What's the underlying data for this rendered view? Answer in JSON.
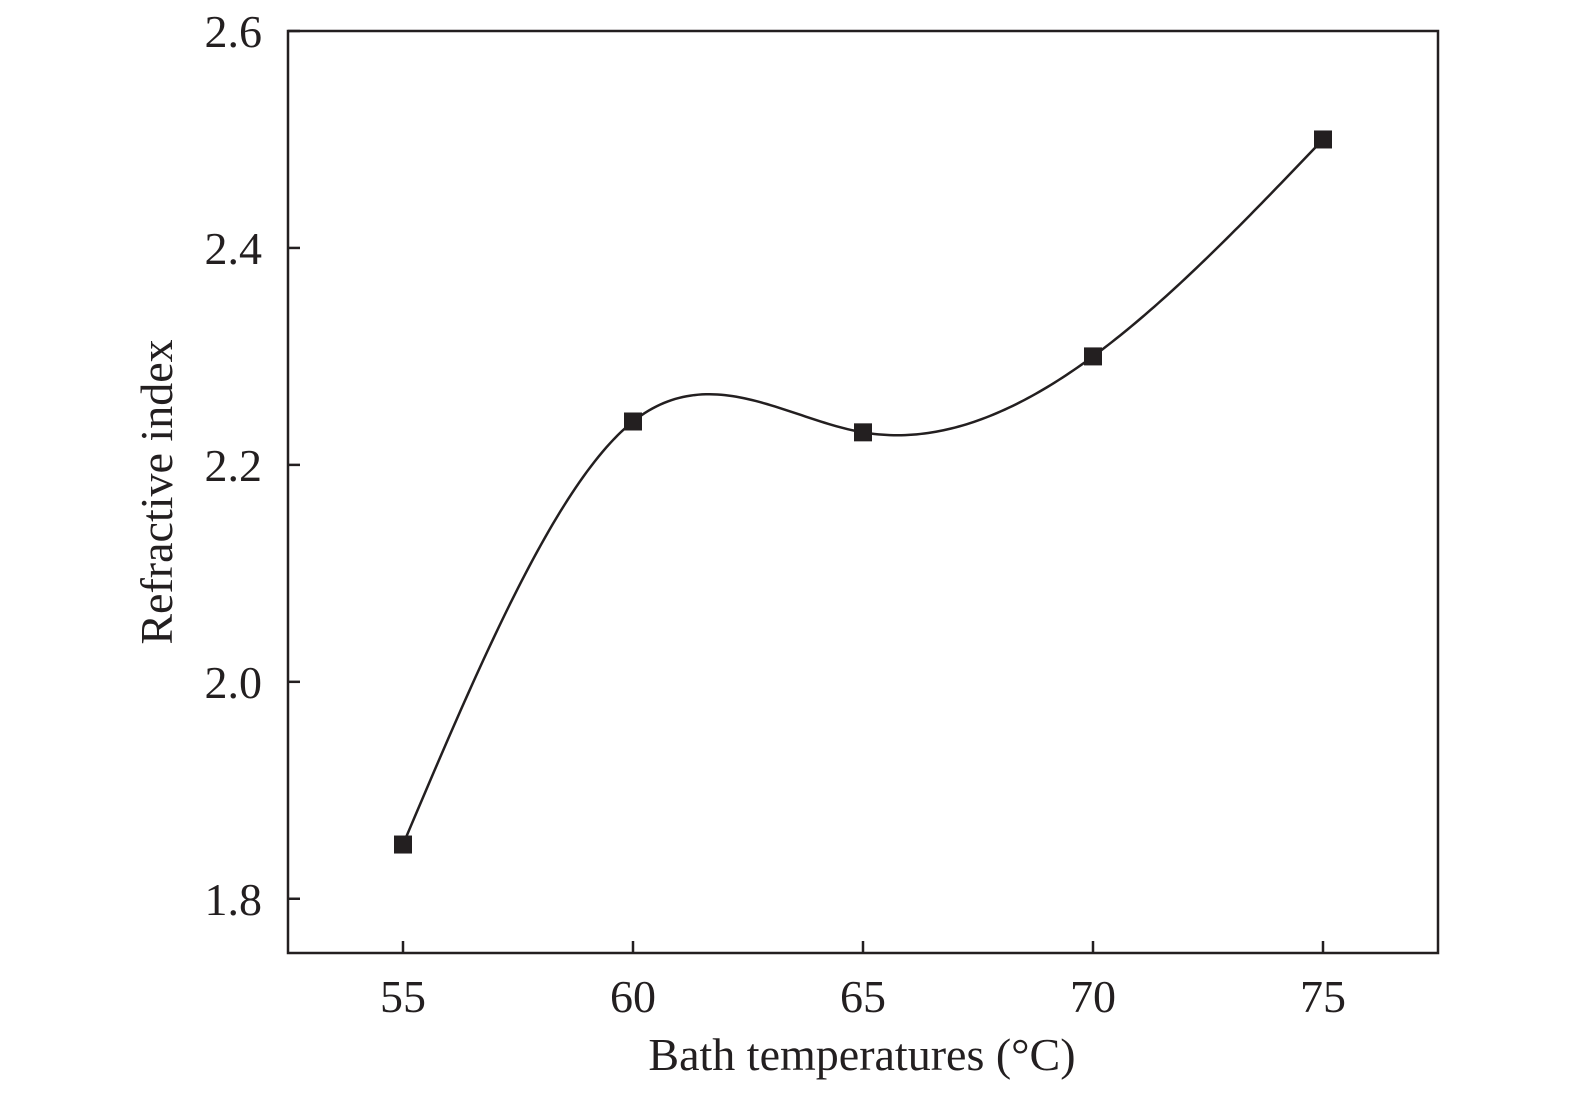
{
  "chart_data": {
    "type": "line",
    "title": "",
    "xlabel": "Bath temperatures (°C)",
    "ylabel": "Refractive index",
    "x": [
      55,
      60,
      65,
      70,
      75
    ],
    "series": [
      {
        "values": [
          1.85,
          2.24,
          2.23,
          2.3,
          2.5
        ]
      }
    ],
    "xlim": [
      52.5,
      77.5
    ],
    "ylim": [
      1.75,
      2.6
    ],
    "xticks": [
      55,
      60,
      65,
      70,
      75
    ],
    "xtick_labels": [
      "55",
      "60",
      "65",
      "70",
      "75"
    ],
    "yticks": [
      1.8,
      2.0,
      2.2,
      2.4,
      2.6
    ],
    "ytick_labels": [
      "1.8",
      "2.0",
      "2.2",
      "2.4",
      "2.6"
    ],
    "marker": "square",
    "smooth_line": true,
    "grid": false,
    "legend": "none",
    "colors": {
      "line": "#231f20",
      "marker": "#231f20",
      "frame": "#231f20"
    }
  }
}
